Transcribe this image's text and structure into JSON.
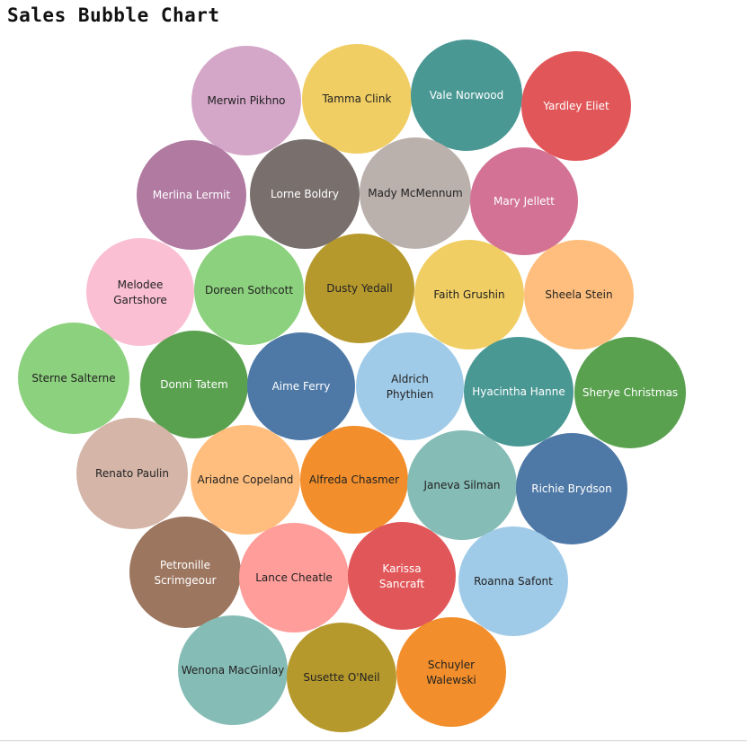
{
  "chart_data": {
    "type": "bubble",
    "title": "Sales Bubble Chart",
    "bubbles": [
      {
        "name": "Merwin Pikhno",
        "color": "#d4a6c8",
        "label_color": "#222222"
      },
      {
        "name": "Tamma Clink",
        "color": "#f1ce63",
        "label_color": "#222222"
      },
      {
        "name": "Vale Norwood",
        "color": "#499894",
        "label_color": "#ffffff"
      },
      {
        "name": "Yardley Eliet",
        "color": "#e15759",
        "label_color": "#ffffff"
      },
      {
        "name": "Merlina Lermit",
        "color": "#b07aa1",
        "label_color": "#ffffff"
      },
      {
        "name": "Lorne Boldry",
        "color": "#79706e",
        "label_color": "#ffffff"
      },
      {
        "name": "Mady McMennum",
        "color": "#bab0ac",
        "label_color": "#222222"
      },
      {
        "name": "Mary Jellett",
        "color": "#d37295",
        "label_color": "#ffffff"
      },
      {
        "name": "Melodee Gartshore",
        "color": "#fabfd2",
        "label_color": "#222222"
      },
      {
        "name": "Doreen Sothcott",
        "color": "#8cd17d",
        "label_color": "#222222"
      },
      {
        "name": "Dusty Yedall",
        "color": "#b6992d",
        "label_color": "#222222"
      },
      {
        "name": "Faith Grushin",
        "color": "#f1ce63",
        "label_color": "#222222"
      },
      {
        "name": "Sheela Stein",
        "color": "#ffbe7d",
        "label_color": "#222222"
      },
      {
        "name": "Sterne Salterne",
        "color": "#8cd17d",
        "label_color": "#222222"
      },
      {
        "name": "Donni Tatem",
        "color": "#59a14f",
        "label_color": "#ffffff"
      },
      {
        "name": "Aime Ferry",
        "color": "#4e79a7",
        "label_color": "#ffffff"
      },
      {
        "name": "Aldrich Phythien",
        "color": "#a0cbe8",
        "label_color": "#222222"
      },
      {
        "name": "Hyacintha Hanne",
        "color": "#499894",
        "label_color": "#ffffff"
      },
      {
        "name": "Sherye Christmas",
        "color": "#59a14f",
        "label_color": "#ffffff"
      },
      {
        "name": "Renato Paulin",
        "color": "#d4b5a8",
        "label_color": "#222222"
      },
      {
        "name": "Ariadne Copeland",
        "color": "#ffbe7d",
        "label_color": "#222222"
      },
      {
        "name": "Alfreda Chasmer",
        "color": "#f28e2b",
        "label_color": "#222222"
      },
      {
        "name": "Janeva Silman",
        "color": "#86bcb6",
        "label_color": "#222222"
      },
      {
        "name": "Richie Brydson",
        "color": "#4e79a7",
        "label_color": "#ffffff"
      },
      {
        "name": "Petronille Scrimgeour",
        "color": "#9d7660",
        "label_color": "#ffffff"
      },
      {
        "name": "Lance Cheatle",
        "color": "#ff9d9a",
        "label_color": "#222222"
      },
      {
        "name": "Karissa Sancraft",
        "color": "#e15759",
        "label_color": "#ffffff"
      },
      {
        "name": "Roanna Safont",
        "color": "#a0cbe8",
        "label_color": "#222222"
      },
      {
        "name": "Wenona MacGinlay",
        "color": "#86bcb6",
        "label_color": "#222222"
      },
      {
        "name": "Susette O'Neil",
        "color": "#b6992d",
        "label_color": "#222222"
      },
      {
        "name": "Schuyler Walewski",
        "color": "#f28e2b",
        "label_color": "#222222"
      }
    ]
  }
}
